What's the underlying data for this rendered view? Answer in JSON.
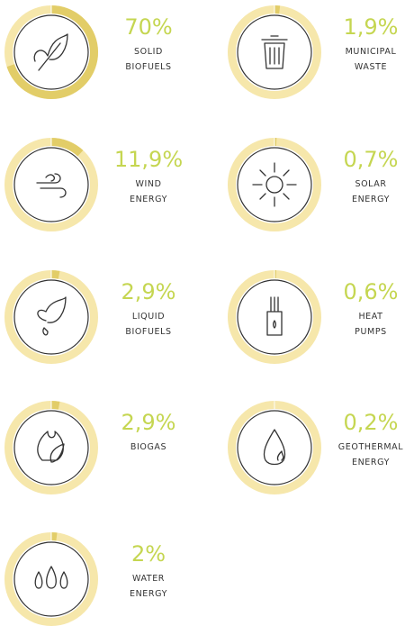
{
  "items": [
    {
      "value": 70,
      "value_label": "70%",
      "label": [
        "SOLID",
        "BIOFUELS"
      ]
    },
    {
      "value": 1.9,
      "value_label": "1,9%",
      "label": [
        "MUNICIPAL",
        "WASTE"
      ]
    },
    {
      "value": 11.9,
      "value_label": "11,9%",
      "label": [
        "WIND",
        "ENERGY"
      ]
    },
    {
      "value": 0.7,
      "value_label": "0,7%",
      "label": [
        "SOLAR",
        "ENERGY"
      ]
    },
    {
      "value": 2.9,
      "value_label": "2,9%",
      "label": [
        "LIQUID",
        "BIOFUELS"
      ]
    },
    {
      "value": 0.6,
      "value_label": "0,6%",
      "label": [
        "HEAT",
        "PUMPS"
      ]
    },
    {
      "value": 2.9,
      "value_label": "2,9%",
      "label": [
        "BIOGAS"
      ]
    },
    {
      "value": 0.2,
      "value_label": "0,2%",
      "label": [
        "GEOTHERMAL",
        "ENERGY"
      ]
    },
    {
      "value": 2,
      "value_label": "2%",
      "label": [
        "WATER",
        "ENERGY"
      ]
    }
  ]
}
